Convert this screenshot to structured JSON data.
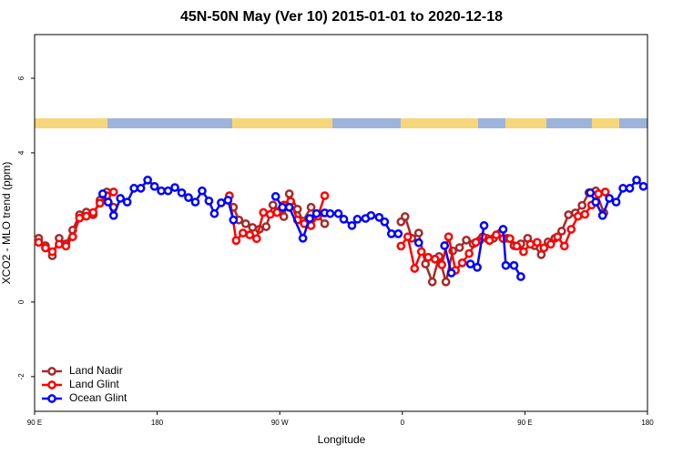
{
  "chart_data": {
    "type": "line",
    "title": "45N-50N May (Ver 10)   2015-01-01 to 2020-12-18",
    "xlabel": "Longitude",
    "ylabel": "XCO2 - MLO trend (ppm)",
    "xlim": [
      90,
      540
    ],
    "ylim": [
      -2.93,
      7.17
    ],
    "xticks": [
      {
        "value": 90,
        "label": "90 E"
      },
      180,
      {
        "value": 270,
        "label": "90 W"
      },
      {
        "value": 360,
        "label": "0"
      },
      {
        "value": 450,
        "label": "90 E"
      },
      {
        "value": 540,
        "label": "180"
      }
    ],
    "yticks": [
      -2,
      0,
      4,
      6
    ],
    "legend": "bottom-left",
    "series": [
      {
        "name": "Land Nadir",
        "color": "#a52a2a",
        "x": [
          93,
          98,
          103,
          108,
          113,
          118,
          123,
          128,
          133,
          138,
          143,
          148,
          null,
          236,
          240,
          245,
          250,
          255,
          260,
          265,
          270,
          273,
          277,
          283,
          287,
          293,
          297,
          303,
          null,
          359,
          362,
          367,
          372,
          377,
          382,
          387,
          392,
          397,
          402,
          407,
          412,
          417,
          422,
          427,
          432,
          437,
          442,
          447,
          452,
          457,
          462,
          467,
          472,
          477,
          482,
          487,
          492,
          497,
          502,
          508
        ],
        "values": [
          1.71,
          1.51,
          1.24,
          1.71,
          1.56,
          1.93,
          2.34,
          2.41,
          2.34,
          2.73,
          2.95,
          2.54,
          null,
          2.54,
          2.2,
          2.1,
          2.0,
          1.95,
          2.02,
          2.6,
          2.44,
          2.29,
          2.9,
          2.49,
          2.17,
          2.54,
          2.34,
          2.1,
          null,
          2.15,
          2.29,
          1.71,
          1.85,
          1.02,
          0.54,
          1.22,
          0.54,
          1.37,
          1.46,
          1.66,
          1.56,
          1.66,
          1.71,
          1.71,
          1.85,
          1.71,
          1.51,
          1.56,
          1.71,
          1.51,
          1.27,
          1.61,
          1.71,
          1.9,
          2.34,
          2.39,
          2.59,
          2.93,
          2.98,
          2.39
        ]
      },
      {
        "name": "Land Glint",
        "color": "#ff0000",
        "x": [
          93,
          98,
          103,
          108,
          113,
          118,
          123,
          128,
          133,
          138,
          143,
          148,
          null,
          233,
          238,
          243,
          248,
          253,
          258,
          263,
          268,
          273,
          278,
          283,
          288,
          293,
          298,
          303,
          null,
          359,
          364,
          369,
          374,
          379,
          384,
          389,
          394,
          399,
          404,
          409,
          414,
          419,
          424,
          429,
          434,
          439,
          444,
          449,
          454,
          459,
          464,
          469,
          474,
          479,
          484,
          489,
          494,
          499,
          504,
          509
        ],
        "values": [
          1.6,
          1.45,
          1.35,
          1.55,
          1.5,
          1.75,
          2.25,
          2.3,
          2.4,
          2.65,
          2.85,
          2.95,
          null,
          2.85,
          1.65,
          1.85,
          1.8,
          1.7,
          2.4,
          2.35,
          2.4,
          2.6,
          2.7,
          2.2,
          2.1,
          2.05,
          2.3,
          2.85,
          null,
          1.5,
          1.75,
          0.9,
          1.35,
          1.2,
          1.15,
          1.0,
          1.75,
          0.85,
          1.05,
          1.3,
          1.6,
          1.75,
          1.65,
          1.8,
          1.7,
          1.7,
          1.5,
          1.35,
          1.55,
          1.6,
          1.45,
          1.55,
          1.75,
          1.5,
          1.95,
          2.3,
          2.35,
          2.6,
          2.9,
          2.95
        ]
      },
      {
        "name": "Ocean Glint",
        "color": "#0000ff",
        "x": [
          140,
          144,
          148,
          153,
          158,
          163,
          168,
          173,
          178,
          183,
          188,
          193,
          198,
          203,
          208,
          213,
          218,
          222,
          227,
          232,
          236,
          null,
          267,
          272,
          277,
          287,
          292,
          297,
          303,
          307,
          313,
          317,
          323,
          327,
          333,
          337,
          343,
          347,
          352,
          357,
          null,
          372,
          null,
          391,
          396,
          null,
          410,
          415,
          420,
          null,
          434,
          436,
          442,
          447,
          null,
          498,
          502,
          507,
          512,
          517,
          522,
          527,
          532,
          537
        ],
        "values": [
          2.9,
          2.68,
          2.32,
          2.78,
          2.68,
          3.05,
          3.05,
          3.27,
          3.1,
          2.98,
          2.98,
          3.07,
          2.93,
          2.8,
          2.68,
          2.98,
          2.71,
          2.37,
          2.66,
          2.73,
          2.2,
          null,
          2.83,
          2.54,
          2.54,
          1.71,
          2.24,
          2.37,
          2.39,
          2.37,
          2.37,
          2.22,
          2.05,
          2.22,
          2.24,
          2.32,
          2.27,
          2.15,
          1.83,
          1.83,
          null,
          1.59,
          null,
          1.51,
          0.78,
          null,
          1.02,
          0.93,
          2.05,
          null,
          1.95,
          0.98,
          0.98,
          0.68,
          null,
          2.93,
          2.68,
          2.32,
          2.78,
          2.68,
          3.05,
          3.05,
          3.27,
          3.1
        ]
      }
    ]
  }
}
